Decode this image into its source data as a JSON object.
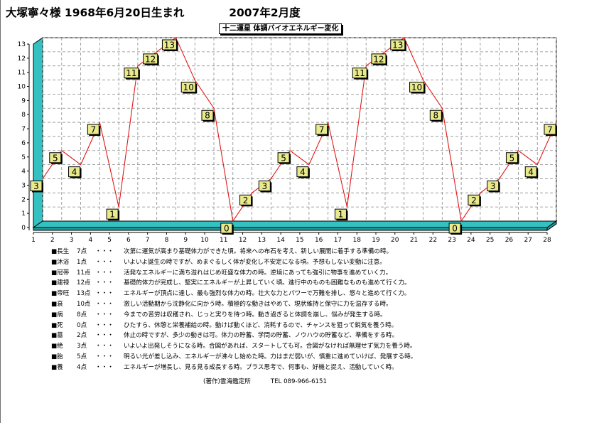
{
  "header": {
    "name": "大塚寧々様",
    "birth": "1968年6月20日生まれ",
    "period": "2007年2月度"
  },
  "chart_data": {
    "type": "line",
    "title": "十二運星 体調バイオエネルギー変化",
    "x": [
      1,
      2,
      3,
      4,
      5,
      6,
      7,
      8,
      9,
      10,
      11,
      12,
      13,
      14,
      15,
      16,
      17,
      18,
      19,
      20,
      21,
      22,
      23,
      24,
      25,
      26,
      27,
      28
    ],
    "values": [
      3,
      5,
      4,
      7,
      1,
      11,
      12,
      13,
      10,
      8,
      0,
      2,
      3,
      5,
      4,
      7,
      1,
      11,
      12,
      13,
      10,
      8,
      0,
      2,
      3,
      5,
      4,
      7
    ],
    "ylim": [
      0,
      13
    ],
    "xlim": [
      1,
      28
    ],
    "yticks": [
      0,
      1,
      2,
      3,
      4,
      5,
      6,
      7,
      8,
      9,
      10,
      11,
      12,
      13
    ],
    "grid": true,
    "line_color": "#e01818",
    "label_fill": "#e9ea8c",
    "floor_color": "#33c1c1"
  },
  "legend": [
    {
      "name": "長生",
      "score": "7点",
      "dots": "・・・",
      "text": "次第に運気が高まり基礎体力ができた頃。将来への布石を考え、新しい展開に着手する準備の時。"
    },
    {
      "name": "沐浴",
      "score": "1点",
      "dots": "・・・",
      "text": "いよいよ誕生の時ですが、めまぐるしく体が変化し不安定になる頃。予想もしない変動に注意。"
    },
    {
      "name": "冠帯",
      "score": "11点",
      "dots": "・・・",
      "text": "活発なエネルギーに満ち溢れはじめ旺盛な体力の時。逆境にあっても強引に物事を進めていく力。"
    },
    {
      "name": "建禄",
      "score": "12点",
      "dots": "・・・",
      "text": "基礎的体力が完成し、堅実にエネルギーが上昇していく頃。進行中のものも困難なものも進めて行く力。"
    },
    {
      "name": "帝旺",
      "score": "13点",
      "dots": "・・・",
      "text": "エネルギーが頂点に達し、最も強烈な体力の時。壮大な力とパワーで万難を排し、悠々と進めて行く力。"
    },
    {
      "name": "衰",
      "score": "10点",
      "dots": "・・・",
      "text": "激しい活動期から沈静化に向かう時。積極的な動きはやめて、現状維持と保守に力を温存する時。"
    },
    {
      "name": "病",
      "score": "8点",
      "dots": "・・・",
      "text": "今までの苦労は収穫され、じっと実りを待つ時。動き過ぎると体調を崩し、悩みが発生する時。"
    },
    {
      "name": "死",
      "score": "0点",
      "dots": "・・・",
      "text": "ひたすら、休憩と栄養補給の時。動けば動くほど、消耗するので、チャンスを狙って鋭気を養う時。"
    },
    {
      "name": "墓",
      "score": "2点",
      "dots": "・・・",
      "text": "休止の時ですが、多少の動きは可。体力の貯蓄、学問の貯蓄、ノウハウの貯蓄など、準備をする時。"
    },
    {
      "name": "絶",
      "score": "3点",
      "dots": "・・・",
      "text": "いよいよ出発しそうになる時。合図があれば、スタートしても可。合図がなければ無理せず気力を養う時。"
    },
    {
      "name": "胎",
      "score": "5点",
      "dots": "・・・",
      "text": "明るい光が差し込み、エネルギーが沸々し始めた時。力はまだ弱いが、慎重に進めていけば、発展する時。"
    },
    {
      "name": "養",
      "score": "4点",
      "dots": "・・・",
      "text": "エネルギーが増長し、見る見る成長する時。プラス思考で、何事も、好機と捉え、活動していく時。"
    }
  ],
  "legend_marker": "■",
  "footer": {
    "author": "(著作)雲海鑑定所",
    "tel": "TEL 089-966-6151"
  }
}
